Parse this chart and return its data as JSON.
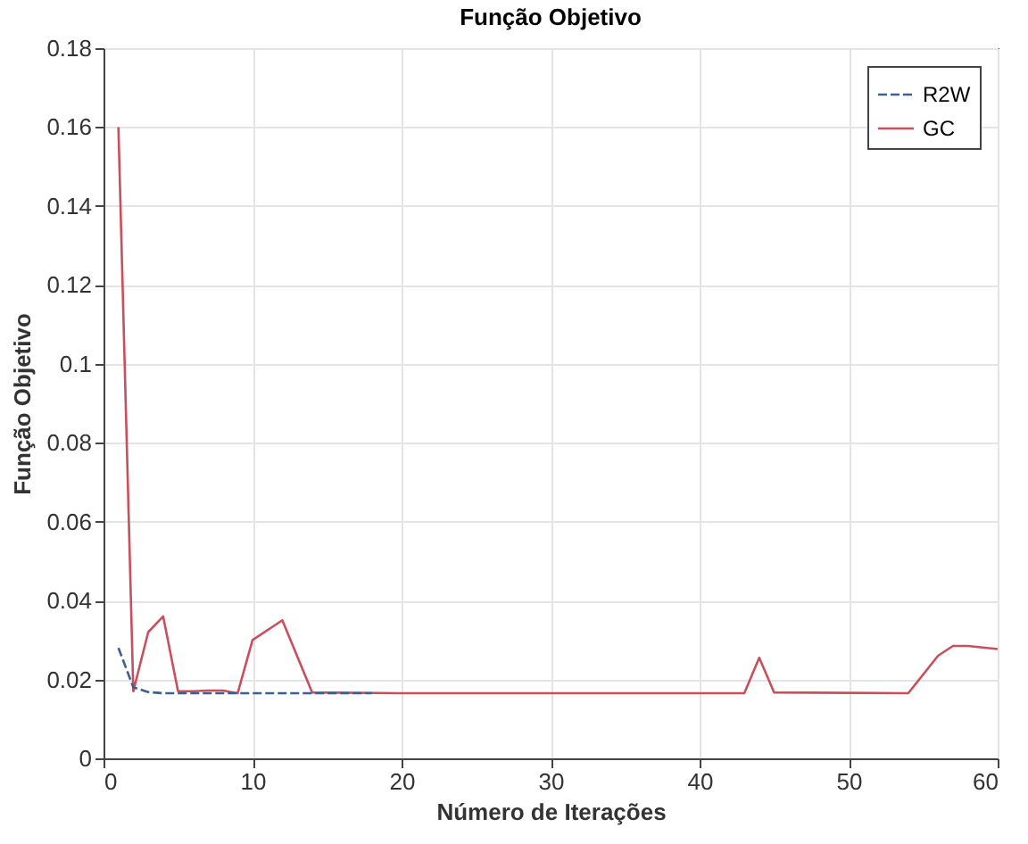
{
  "chart_data": {
    "type": "line",
    "title": "Função Objetivo",
    "xlabel": "Número de Iterações",
    "ylabel": "Função Objetivo",
    "xlim": [
      0,
      60
    ],
    "xticks": [
      0,
      10,
      20,
      30,
      40,
      50,
      60
    ],
    "ylim": [
      0,
      0.18
    ],
    "yticks": [
      0,
      0.02,
      0.04,
      0.06,
      0.08,
      0.1,
      0.12,
      0.14,
      0.16,
      0.18
    ],
    "grid": true,
    "legend": "top right",
    "marker": "none",
    "series": [
      {
        "name": "R2W",
        "color": "#3f5f8f",
        "line_style": "dashed",
        "x": [
          1,
          2,
          3,
          4,
          6,
          8,
          10,
          12,
          14,
          16,
          18
        ],
        "values": [
          0.028,
          0.018,
          0.0168,
          0.0165,
          0.0165,
          0.0165,
          0.0165,
          0.0165,
          0.0165,
          0.0165,
          0.0165
        ]
      },
      {
        "name": "GC",
        "color": "#c8505e",
        "line_style": "solid",
        "x": [
          1,
          2,
          3,
          4,
          5,
          6,
          7,
          8,
          9,
          10,
          12,
          14,
          20,
          30,
          43,
          44,
          45,
          50,
          54,
          56,
          57,
          58,
          60
        ],
        "values": [
          0.16,
          0.017,
          0.032,
          0.036,
          0.017,
          0.017,
          0.0172,
          0.0172,
          0.0165,
          0.03,
          0.035,
          0.0167,
          0.0165,
          0.0165,
          0.0165,
          0.0255,
          0.0167,
          0.0166,
          0.0165,
          0.026,
          0.0285,
          0.0285,
          0.0277
        ]
      }
    ]
  }
}
